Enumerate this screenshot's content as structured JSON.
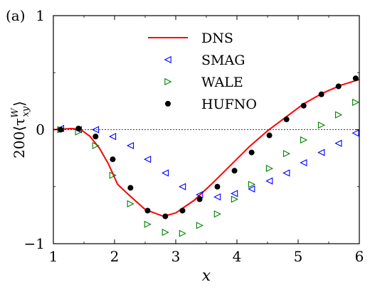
{
  "chart_data": {
    "type": "line",
    "panel_label": "(a)",
    "xlabel": "x",
    "ylabel": "200⟨τ",
    "ylabel_sup": "W",
    "ylabel_sub": "xy",
    "ylabel_close": "⟩",
    "xlim": [
      1,
      6
    ],
    "ylim": [
      -1,
      1
    ],
    "xticks": [
      1,
      2,
      3,
      4,
      5,
      6
    ],
    "yticks": [
      -1,
      0,
      1
    ],
    "ytick_labels": [
      "−1",
      "0",
      "1"
    ],
    "zero_line": true,
    "legend_position": "top-center",
    "series": [
      {
        "name": "DNS",
        "kind": "line",
        "color": "#ff0000",
        "x": [
          1.0,
          1.15,
          1.3,
          1.45,
          1.6,
          1.75,
          1.9,
          2.05,
          2.25,
          2.5,
          2.8,
          3.0,
          3.3,
          3.6,
          3.9,
          4.2,
          4.5,
          4.8,
          5.1,
          5.4,
          5.7,
          6.0
        ],
        "y": [
          0.0,
          0.005,
          0.01,
          0.0,
          -0.06,
          -0.16,
          -0.3,
          -0.48,
          -0.58,
          -0.7,
          -0.76,
          -0.73,
          -0.62,
          -0.47,
          -0.31,
          -0.15,
          -0.01,
          0.11,
          0.23,
          0.32,
          0.39,
          0.44
        ]
      },
      {
        "name": "SMAG",
        "kind": "marker",
        "marker": "triangle-left",
        "color": "#0000ff",
        "x": [
          1.12,
          1.41,
          1.69,
          1.97,
          2.26,
          2.54,
          2.83,
          3.11,
          3.39,
          3.68,
          3.96,
          4.24,
          4.53,
          4.81,
          5.09,
          5.38,
          5.66,
          5.94
        ],
        "y": [
          0.01,
          0.0,
          0.0,
          -0.06,
          -0.14,
          -0.26,
          -0.38,
          -0.5,
          -0.57,
          -0.59,
          -0.56,
          -0.52,
          -0.45,
          -0.38,
          -0.29,
          -0.2,
          -0.12,
          -0.03
        ]
      },
      {
        "name": "WALE",
        "kind": "marker",
        "marker": "triangle-right",
        "color": "#008000",
        "x": [
          1.12,
          1.41,
          1.69,
          1.97,
          2.26,
          2.54,
          2.83,
          3.11,
          3.39,
          3.68,
          3.96,
          4.24,
          4.53,
          4.81,
          5.09,
          5.38,
          5.66,
          5.94
        ],
        "y": [
          0.0,
          -0.02,
          -0.14,
          -0.4,
          -0.65,
          -0.83,
          -0.9,
          -0.91,
          -0.84,
          -0.74,
          -0.61,
          -0.48,
          -0.34,
          -0.21,
          -0.09,
          0.04,
          0.13,
          0.24
        ]
      },
      {
        "name": "HUFNO",
        "kind": "marker",
        "marker": "circle",
        "color": "#000000",
        "x": [
          1.12,
          1.41,
          1.69,
          1.97,
          2.26,
          2.54,
          2.83,
          3.11,
          3.39,
          3.68,
          3.96,
          4.24,
          4.53,
          4.81,
          5.09,
          5.38,
          5.66,
          5.94
        ],
        "y": [
          0.0,
          0.01,
          -0.06,
          -0.26,
          -0.51,
          -0.71,
          -0.76,
          -0.71,
          -0.61,
          -0.5,
          -0.36,
          -0.2,
          -0.05,
          0.09,
          0.21,
          0.31,
          0.38,
          0.45
        ]
      }
    ]
  }
}
